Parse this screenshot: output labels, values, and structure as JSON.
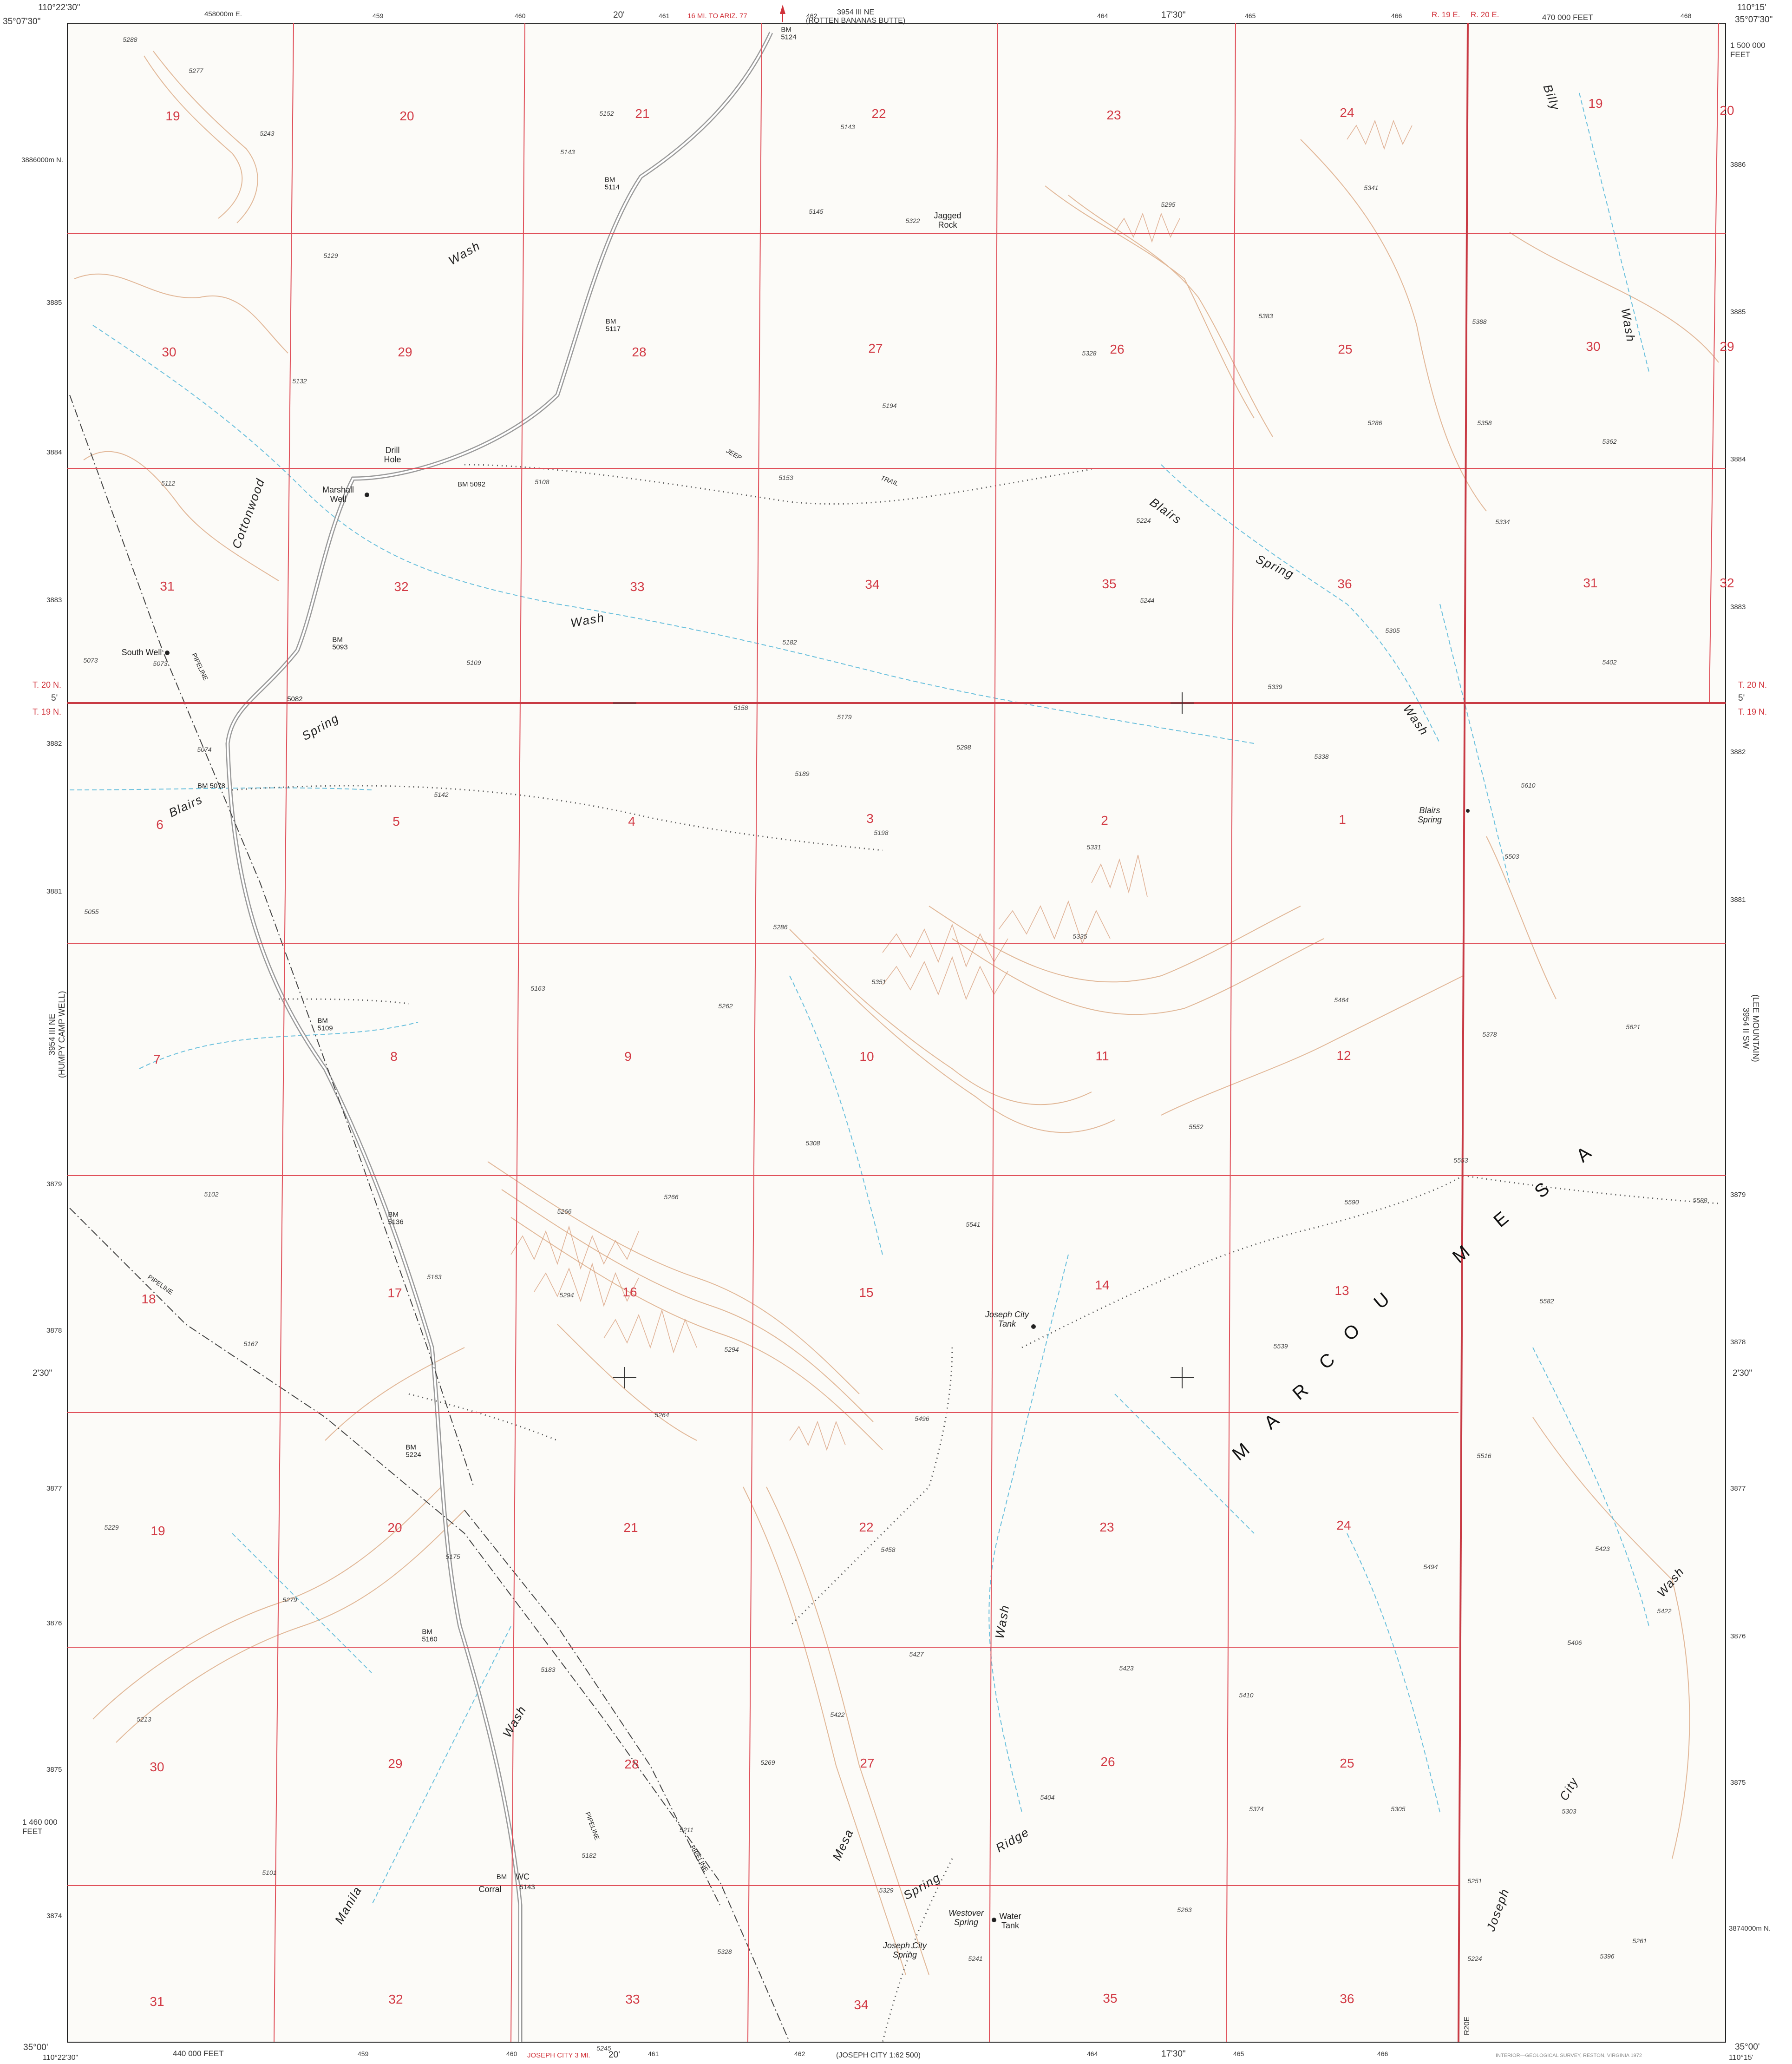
{
  "header": {
    "top_left_coord": "110°22'30\"\n35°07'30\"",
    "top_left_lon": "110°22'30\"",
    "top_left_lat": "35°07'30\"",
    "top_right_lon": "110°15'",
    "top_right_lat": "35°07'30\"",
    "top_easting": "458000m E.",
    "top_easting_feet": "470 000 FEET",
    "top_northing_feet": "1 500 000\nFEET",
    "top_min_20": "20'",
    "top_min_1730": "17'30\"",
    "adjoining_north": "3954 III NE\n(ROTTEN BANANAS BUTTE)",
    "road_note_top": "16 MI. TO ARIZ. 77",
    "top_grid_ticks": [
      "459",
      "460",
      "461",
      "462",
      "464",
      "465",
      "466",
      "468"
    ]
  },
  "footer": {
    "bottom_left_coord": "35°00'",
    "bottom_left_lon": "110°22'30\"",
    "bottom_easting_feet": "440 000 FEET",
    "bottom_min_20": "20'",
    "bottom_min_1730": "17'30\"",
    "bottom_right_lat": "35°00'",
    "bottom_right_lon": "110°15'",
    "road_note_bottom": "JOSEPH CITY 3 MI.",
    "adjoining_south": "(JOSEPH CITY 1:62 500)",
    "bottom_grid_ticks": [
      "459",
      "460",
      "461",
      "462",
      "464",
      "465",
      "466"
    ],
    "bottom_left_feet": "1 460 000\nFEET",
    "edition_note": "INTERIOR—GEOLOGICAL SURVEY, RESTON, VIRGINIA 1972"
  },
  "left_margin": {
    "adjoining_west": "3954 III NE\n(HUMPY CAMP WELL)",
    "township_north": "T. 20 N.",
    "township_south": "T. 19 N.",
    "minute_5": "5'",
    "minute_230": "2'30\"",
    "northing_ticks": [
      "3886000m N.",
      "3885",
      "3884",
      "3883",
      "3882",
      "3881",
      "3879",
      "3878",
      "3877",
      "3876",
      "3875",
      "3874"
    ]
  },
  "right_margin": {
    "adjoining_east": "(LEE MOUNTAIN)\n3954 II SW",
    "township_north": "T. 20 N.",
    "township_south": "T. 19 N.",
    "minute_5": "5'",
    "minute_230": "2'30\"",
    "northing_ticks": [
      "3886",
      "3885",
      "3884",
      "3883",
      "3882",
      "3881",
      "3879",
      "3878",
      "3877",
      "3876",
      "3875",
      "3874000m N."
    ],
    "range_west": "R. 19 E.",
    "range_east": "R. 20 E.",
    "range_bottom": "R20E"
  },
  "sections": {
    "t20_row1": [
      "19",
      "20",
      "21",
      "22",
      "23",
      "24",
      "19",
      "20"
    ],
    "t20_row2": [
      "30",
      "29",
      "28",
      "27",
      "26",
      "25",
      "30",
      "29"
    ],
    "t20_row3": [
      "31",
      "32",
      "33",
      "34",
      "35",
      "36",
      "31",
      "32"
    ],
    "t19_row1": [
      "6",
      "5",
      "4",
      "3",
      "2",
      "1"
    ],
    "t19_row2": [
      "7",
      "8",
      "9",
      "10",
      "11",
      "12"
    ],
    "t19_row3": [
      "18",
      "17",
      "16",
      "15",
      "14",
      "13"
    ],
    "t19_row4": [
      "19",
      "20",
      "21",
      "22",
      "23",
      "24"
    ],
    "t19_row5": [
      "30",
      "29",
      "28",
      "27",
      "26",
      "25"
    ],
    "t19_row6": [
      "31",
      "32",
      "33",
      "34",
      "35",
      "36"
    ]
  },
  "places": {
    "jagged_rock": "Jagged\nRock",
    "drill_hole": "Drill\nHole",
    "marshall_well": "Marshall\nWell",
    "south_well": "South Well",
    "blairs_spring": "Blairs\nSpring",
    "joseph_city_tank": "Joseph City\nTank",
    "westover_spring": "Westover\nSpring",
    "water_tank": "Water\nTank",
    "joseph_city_spring": "Joseph City\nSpring",
    "corral": "Corral",
    "wc": "WC",
    "pipeline": "PIPELINE",
    "jeep_trail": "JEEP",
    "jeep_trail_2": "TRAIL"
  },
  "hydro_labels": {
    "billy": "Billy",
    "wash_ne": "Wash",
    "wash_nw": "Wash",
    "cottonwood": "Cottonwood",
    "wash_center": "Wash",
    "blairs": "Blairs",
    "spring": "Spring",
    "wash_blairs": "Wash",
    "spring_w": "Spring",
    "blairs_w": "Blairs",
    "wash_center_s": "Wash",
    "wash_sw": "Wash",
    "manila": "Manila",
    "mesa": "Mesa",
    "spring_ridge": "Spring",
    "ridge": "Ridge",
    "joseph": "Joseph",
    "city": "City",
    "wash_se": "Wash"
  },
  "mesa_letters": [
    "M",
    "A",
    "R",
    "C",
    "O",
    "U",
    "M",
    "E",
    "S",
    "A"
  ],
  "benchmarks": {
    "bm5124": "BM\n5124",
    "bm5114": "BM\n5114",
    "bm5117": "BM\n5117",
    "bm5092": "BM 5092",
    "bm5093": "BM\n5093",
    "bm5082": "5082",
    "bm5078": "BM 5078",
    "bm5109": "BM\n5109",
    "bm5136": "BM\n5136",
    "bm5224": "BM\n5224",
    "bm5160": "BM\n5160",
    "bm5143": "BM",
    "bm5143v": "5143"
  },
  "elevations": [
    "5288",
    "5277",
    "5243",
    "5129",
    "5132",
    "5112",
    "5152",
    "5143",
    "5108",
    "5153",
    "5109",
    "5073",
    "5073",
    "5143",
    "5145",
    "5322",
    "5194",
    "5182",
    "5295",
    "5341",
    "5383",
    "5328",
    "5388",
    "5286",
    "5358",
    "5362",
    "5224",
    "5244",
    "5334",
    "5305",
    "5402",
    "5339",
    "5158",
    "5179",
    "5298",
    "5189",
    "5198",
    "5331",
    "5338",
    "5610",
    "5503",
    "5074",
    "5142",
    "5055",
    "5286",
    "5335",
    "5351",
    "5464",
    "5262",
    "5163",
    "5378",
    "5621",
    "5552",
    "5308",
    "5102",
    "5266",
    "5266",
    "5541",
    "5553",
    "5590",
    "5588",
    "5163",
    "5294",
    "5582",
    "5167",
    "5294",
    "5539",
    "5264",
    "5496",
    "5229",
    "5175",
    "5458",
    "5279",
    "5516",
    "5494",
    "5423",
    "5422",
    "5183",
    "5427",
    "5423",
    "5410",
    "5406",
    "5422",
    "5213",
    "5269",
    "5404",
    "5374",
    "5305",
    "5303",
    "5211",
    "5182",
    "5101",
    "5329",
    "5263",
    "5251",
    "5261",
    "5328",
    "5241",
    "5224",
    "5396",
    "5245"
  ]
}
